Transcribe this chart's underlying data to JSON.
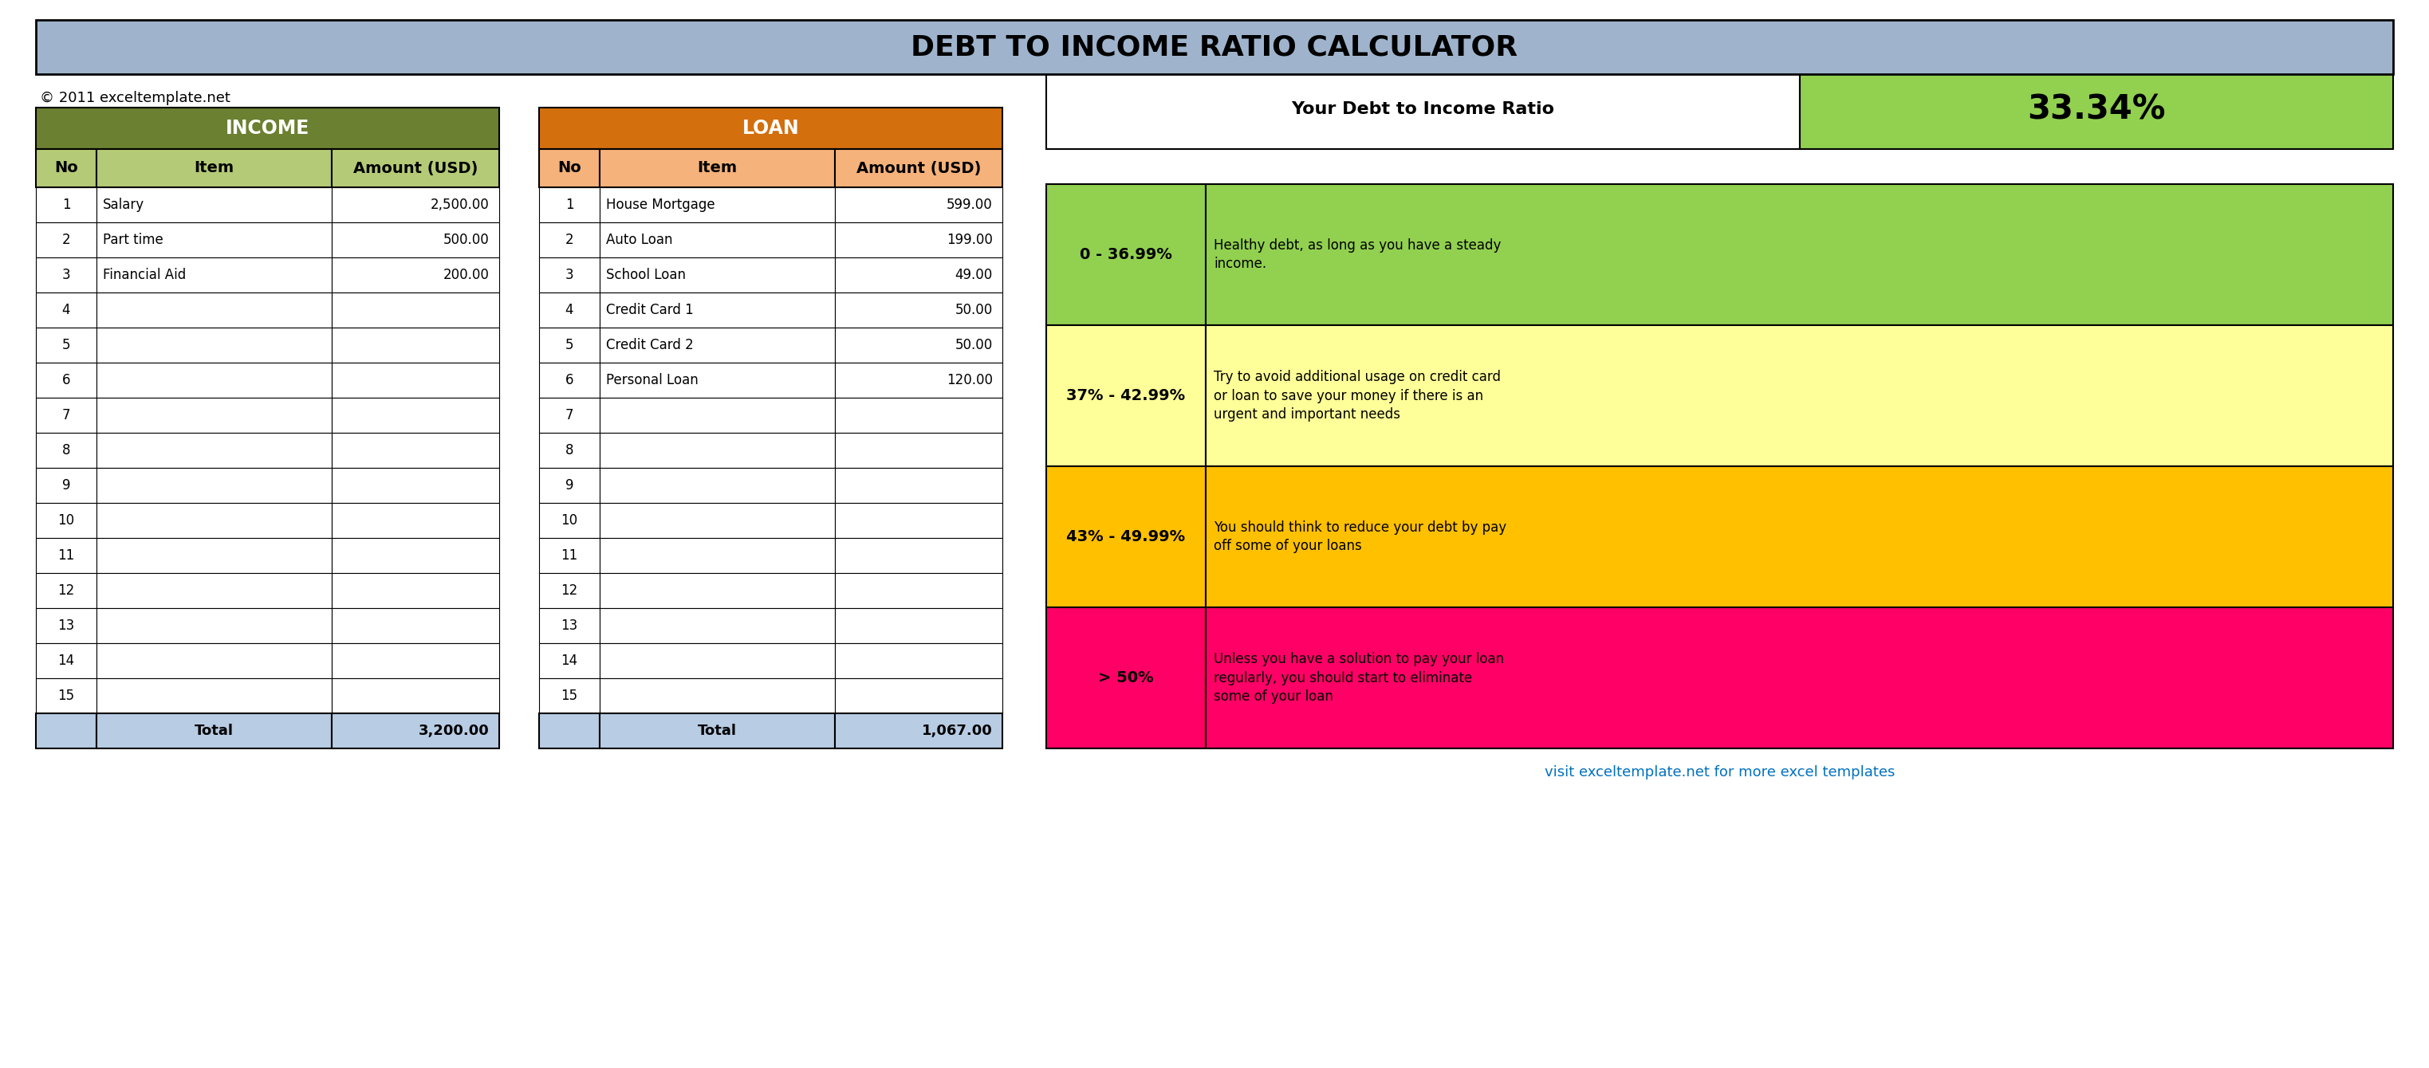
{
  "title": "DEBT TO INCOME RATIO CALCULATOR",
  "title_bg": "#9fb4cc",
  "copyright": "© 2011 exceltemplate.net",
  "income_header_bg": "#6b8031",
  "income_subheader_bg": "#b5ca76",
  "income_rows": [
    {
      "no": "1",
      "item": "Salary",
      "amount": "2,500.00"
    },
    {
      "no": "2",
      "item": "Part time",
      "amount": "500.00"
    },
    {
      "no": "3",
      "item": "Financial Aid",
      "amount": "200.00"
    },
    {
      "no": "4",
      "item": "",
      "amount": ""
    },
    {
      "no": "5",
      "item": "",
      "amount": ""
    },
    {
      "no": "6",
      "item": "",
      "amount": ""
    },
    {
      "no": "7",
      "item": "",
      "amount": ""
    },
    {
      "no": "8",
      "item": "",
      "amount": ""
    },
    {
      "no": "9",
      "item": "",
      "amount": ""
    },
    {
      "no": "10",
      "item": "",
      "amount": ""
    },
    {
      "no": "11",
      "item": "",
      "amount": ""
    },
    {
      "no": "12",
      "item": "",
      "amount": ""
    },
    {
      "no": "13",
      "item": "",
      "amount": ""
    },
    {
      "no": "14",
      "item": "",
      "amount": ""
    },
    {
      "no": "15",
      "item": "",
      "amount": ""
    }
  ],
  "income_total": "3,200.00",
  "loan_header_bg": "#d46f0e",
  "loan_subheader_bg": "#f5b27a",
  "loan_rows": [
    {
      "no": "1",
      "item": "House Mortgage",
      "amount": "599.00"
    },
    {
      "no": "2",
      "item": "Auto Loan",
      "amount": "199.00"
    },
    {
      "no": "3",
      "item": "School Loan",
      "amount": "49.00"
    },
    {
      "no": "4",
      "item": "Credit Card 1",
      "amount": "50.00"
    },
    {
      "no": "5",
      "item": "Credit Card 2",
      "amount": "50.00"
    },
    {
      "no": "6",
      "item": "Personal Loan",
      "amount": "120.00"
    },
    {
      "no": "7",
      "item": "",
      "amount": ""
    },
    {
      "no": "8",
      "item": "",
      "amount": ""
    },
    {
      "no": "9",
      "item": "",
      "amount": ""
    },
    {
      "no": "10",
      "item": "",
      "amount": ""
    },
    {
      "no": "11",
      "item": "",
      "amount": ""
    },
    {
      "no": "12",
      "item": "",
      "amount": ""
    },
    {
      "no": "13",
      "item": "",
      "amount": ""
    },
    {
      "no": "14",
      "item": "",
      "amount": ""
    },
    {
      "no": "15",
      "item": "",
      "amount": ""
    }
  ],
  "loan_total": "1,067.00",
  "dti_label": "Your Debt to Income Ratio",
  "dti_value": "33.34%",
  "dti_value_bg": "#92d050",
  "range_blocks": [
    {
      "range": "0 - 36.99%",
      "desc": "Healthy debt, as long as you have a steady\nincome.",
      "bg": "#92d050"
    },
    {
      "range": "37% - 42.99%",
      "desc": "Try to avoid additional usage on credit card\nor loan to save your money if there is an\nurgent and important needs",
      "bg": "#ffff99"
    },
    {
      "range": "43% - 49.99%",
      "desc": "You should think to reduce your debt by pay\noff some of your loans",
      "bg": "#ffc000"
    },
    {
      "range": "> 50%",
      "desc": "Unless you have a solution to pay your loan\nregularly, you should start to eliminate\nsome of your loan",
      "bg": "#ff0066"
    }
  ],
  "footer_link": "visit exceltemplate.net for more excel templates",
  "footer_link_color": "#0070c0",
  "bg_color": "#ffffff",
  "border_color": "#000000",
  "total_row_bg": "#b8cce4"
}
